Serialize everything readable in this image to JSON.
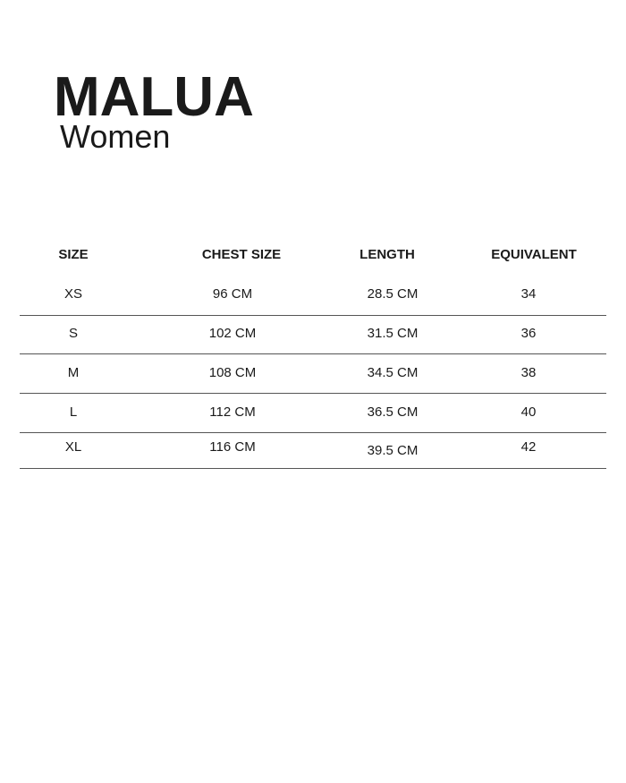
{
  "brand": "MALUA",
  "subtitle": "Women",
  "table": {
    "headers": [
      "SIZE",
      "CHEST SIZE",
      "LENGTH",
      "EQUIVALENT"
    ],
    "rows": [
      [
        "XS",
        "96 CM",
        "28.5 CM",
        "34"
      ],
      [
        "S",
        "102 CM",
        "31.5 CM",
        "36"
      ],
      [
        "M",
        "108 CM",
        "34.5 CM",
        "38"
      ],
      [
        "L",
        "112 CM",
        "36.5 CM",
        "40"
      ],
      [
        "XL",
        "116 CM",
        "39.5 CM",
        "42"
      ]
    ]
  }
}
